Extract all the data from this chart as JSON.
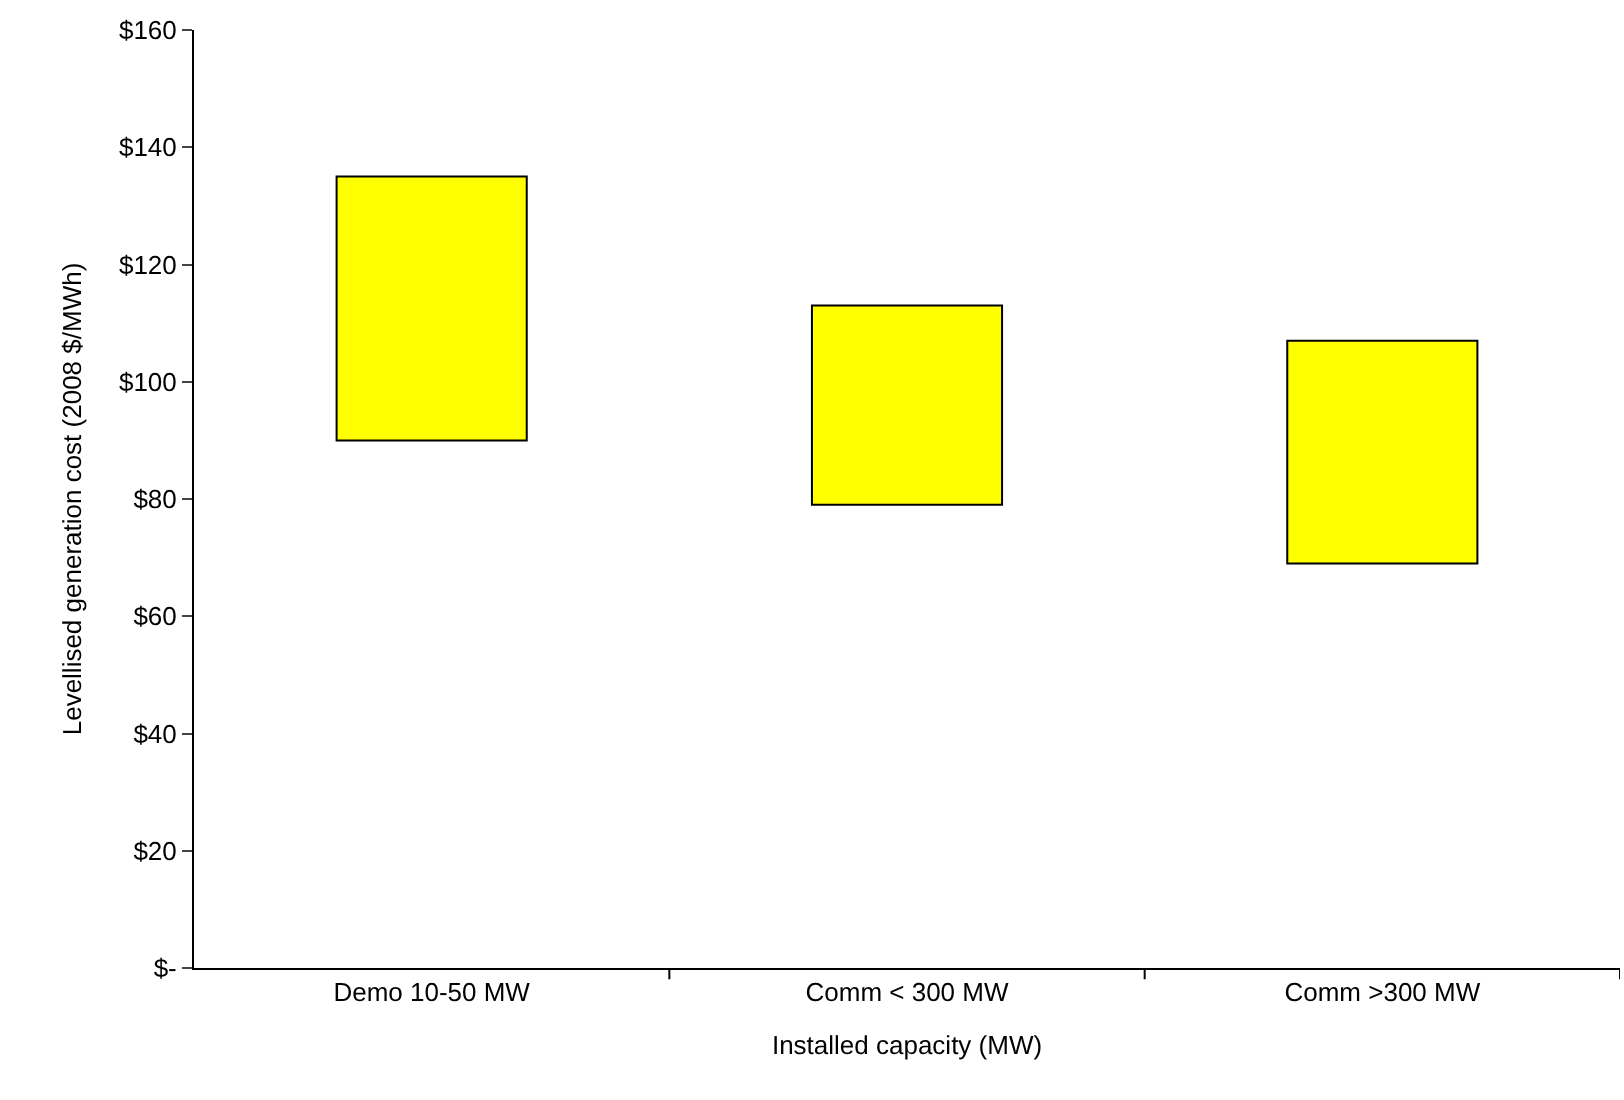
{
  "chart_data": {
    "type": "bar",
    "xlabel": "Installed capacity (MW)",
    "ylabel": "Levellised generation cost (2008 $/MWh)",
    "categories": [
      "Demo 10-50 MW",
      "Comm < 300 MW",
      "Comm >300 MW"
    ],
    "values": [
      45,
      34,
      38
    ],
    "base": [
      90,
      79,
      69
    ],
    "color": "#ffff00",
    "ylim": [
      0,
      160
    ],
    "yticks": [
      {
        "value": 0,
        "label": "$-"
      },
      {
        "value": 20,
        "label": "$20"
      },
      {
        "value": 40,
        "label": "$40"
      },
      {
        "value": 60,
        "label": "$60"
      },
      {
        "value": 80,
        "label": "$80"
      },
      {
        "value": 100,
        "label": "$100"
      },
      {
        "value": 120,
        "label": "$120"
      },
      {
        "value": 140,
        "label": "$140"
      },
      {
        "value": 160,
        "label": "$160"
      }
    ]
  }
}
